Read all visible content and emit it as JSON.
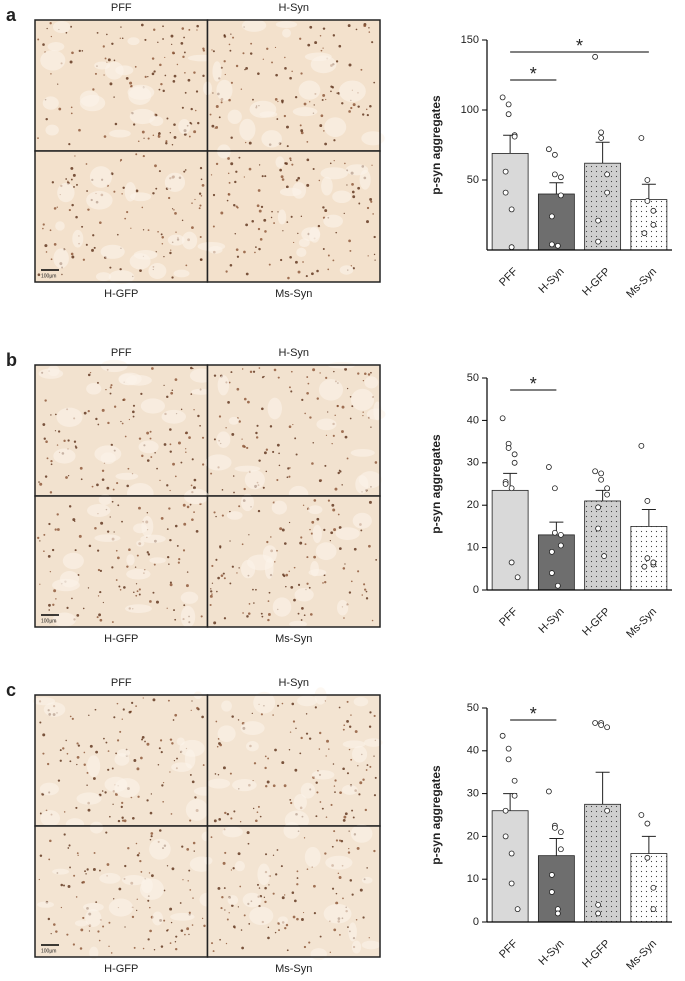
{
  "panels": [
    {
      "label": "a",
      "image_labels": [
        "PFF",
        "H-Syn",
        "H-GFP",
        "Ms-Syn"
      ],
      "scale_bar": "100µm"
    },
    {
      "label": "b",
      "image_labels": [
        "PFF",
        "H-Syn",
        "H-GFP",
        "Ms-Syn"
      ],
      "scale_bar": "100µm"
    },
    {
      "label": "c",
      "image_labels": [
        "PFF",
        "H-Syn",
        "H-GFP",
        "Ms-Syn"
      ],
      "scale_bar": "100µm"
    }
  ],
  "chart_data": [
    {
      "type": "bar",
      "ylabel": "p-syn aggregates",
      "categories": [
        "PFF",
        "H-Syn",
        "H-GFP",
        "Ms-Syn"
      ],
      "values": [
        69,
        40,
        62,
        36
      ],
      "errors": [
        13,
        8,
        15,
        11
      ],
      "points": [
        [
          109,
          104,
          97,
          82,
          81,
          56,
          41,
          29,
          2
        ],
        [
          72,
          68,
          54,
          52,
          39,
          24,
          4,
          3
        ],
        [
          138,
          84,
          80,
          54,
          41,
          21,
          6
        ],
        [
          80,
          50,
          35,
          28,
          18,
          12
        ]
      ],
      "colors": [
        "#d9d9d9",
        "#6e6e6e",
        "#cfcfcf",
        "#ffffff"
      ],
      "dotted": [
        false,
        false,
        true,
        true
      ],
      "ylim": [
        0,
        150
      ],
      "yticks": [
        50,
        100,
        150
      ],
      "brackets": [
        {
          "text": "*",
          "categories": [
            "PFF",
            "H-Syn"
          ]
        },
        {
          "text": "*",
          "categories": [
            "PFF",
            "Ms-Syn"
          ]
        }
      ]
    },
    {
      "type": "bar",
      "ylabel": "p-syn aggregates",
      "categories": [
        "PFF",
        "H-Syn",
        "H-GFP",
        "Ms-Syn"
      ],
      "values": [
        23.5,
        13,
        21,
        15
      ],
      "errors": [
        4,
        3,
        2.5,
        4
      ],
      "points": [
        [
          40.5,
          34.5,
          33.5,
          32,
          30,
          25.5,
          25,
          24,
          6.5,
          3
        ],
        [
          29,
          24,
          13.5,
          13,
          10.5,
          9,
          4,
          1
        ],
        [
          28,
          27.5,
          26,
          24,
          22.5,
          19.5,
          14.5,
          8
        ],
        [
          34,
          21,
          7.5,
          6,
          6.5,
          5.5
        ]
      ],
      "colors": [
        "#d9d9d9",
        "#6e6e6e",
        "#cfcfcf",
        "#ffffff"
      ],
      "dotted": [
        false,
        false,
        true,
        true
      ],
      "ylim": [
        0,
        50
      ],
      "yticks": [
        0,
        10,
        20,
        30,
        40,
        50
      ],
      "brackets": [
        {
          "text": "*",
          "categories": [
            "PFF",
            "H-Syn"
          ]
        }
      ]
    },
    {
      "type": "bar",
      "ylabel": "p-syn aggregates",
      "categories": [
        "PFF",
        "H-Syn",
        "H-GFP",
        "Ms-Syn"
      ],
      "values": [
        26,
        15.5,
        27.5,
        16
      ],
      "errors": [
        4,
        4,
        7.5,
        4
      ],
      "points": [
        [
          43.5,
          40.5,
          38,
          33,
          29.5,
          26,
          20,
          16,
          9,
          3
        ],
        [
          30.5,
          22.5,
          22,
          21,
          17,
          11,
          7,
          3,
          2
        ],
        [
          46.5,
          46.5,
          46,
          45.5,
          26,
          4,
          2
        ],
        [
          25,
          23,
          15,
          8,
          3
        ]
      ],
      "colors": [
        "#d9d9d9",
        "#6e6e6e",
        "#cfcfcf",
        "#ffffff"
      ],
      "dotted": [
        false,
        false,
        true,
        true
      ],
      "ylim": [
        0,
        50
      ],
      "yticks": [
        0,
        10,
        20,
        30,
        40,
        50
      ],
      "brackets": [
        {
          "text": "*",
          "categories": [
            "PFF",
            "H-Syn"
          ]
        }
      ]
    }
  ]
}
